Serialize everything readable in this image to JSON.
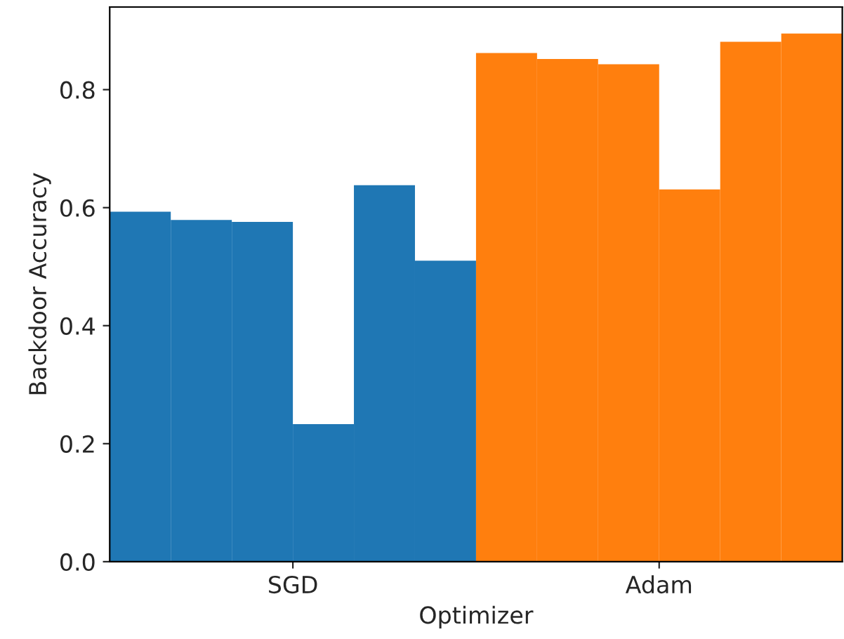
{
  "chart_data": {
    "type": "bar",
    "xlabel": "Optimizer",
    "ylabel": "Backdoor Accuracy",
    "categories": [
      "SGD",
      "Adam"
    ],
    "series": [
      {
        "colors": [
          "#1f77b4",
          "#ff7f0e"
        ],
        "values": [
          0.593,
          0.862
        ]
      },
      {
        "colors": [
          "#1f77b4",
          "#ff7f0e"
        ],
        "values": [
          0.579,
          0.852
        ]
      },
      {
        "colors": [
          "#1f77b4",
          "#ff7f0e"
        ],
        "values": [
          0.576,
          0.843
        ]
      },
      {
        "colors": [
          "#1f77b4",
          "#ff7f0e"
        ],
        "values": [
          0.233,
          0.631
        ]
      },
      {
        "colors": [
          "#1f77b4",
          "#ff7f0e"
        ],
        "values": [
          0.638,
          0.881
        ]
      },
      {
        "colors": [
          "#1f77b4",
          "#ff7f0e"
        ],
        "values": [
          0.51,
          0.895
        ]
      }
    ],
    "ylim": [
      0,
      0.94
    ],
    "yticks": [
      {
        "value": 0,
        "label": "0.0"
      },
      0.2,
      0.4,
      0.6,
      0.8
    ],
    "grid": false
  }
}
